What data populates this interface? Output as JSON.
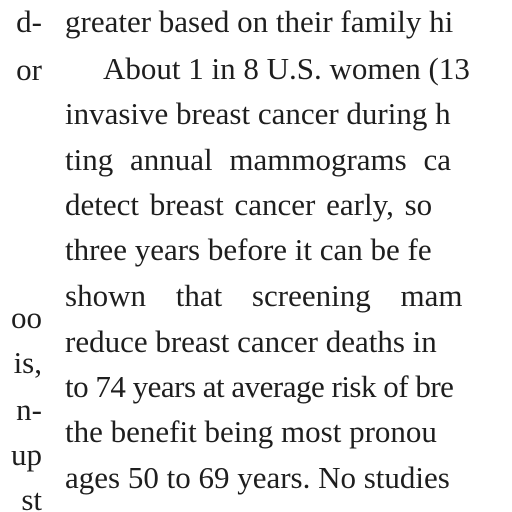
{
  "left_column": {
    "lines": [
      "d-",
      "or",
      "oo",
      "is,",
      "n-",
      "up",
      "st"
    ]
  },
  "right_column": {
    "lines": [
      "greater based on their family hi",
      "About 1 in 8 U.S. women (13",
      "invasive breast cancer during h",
      "ting annual mammograms ca",
      "detect breast cancer early, so",
      "three years before it can be fe",
      "shown that screening mam",
      "reduce breast cancer deaths in",
      "to 74 years at average risk of bre",
      "the benefit being most pronou",
      "ages 50 to 69 years. No studies"
    ]
  }
}
